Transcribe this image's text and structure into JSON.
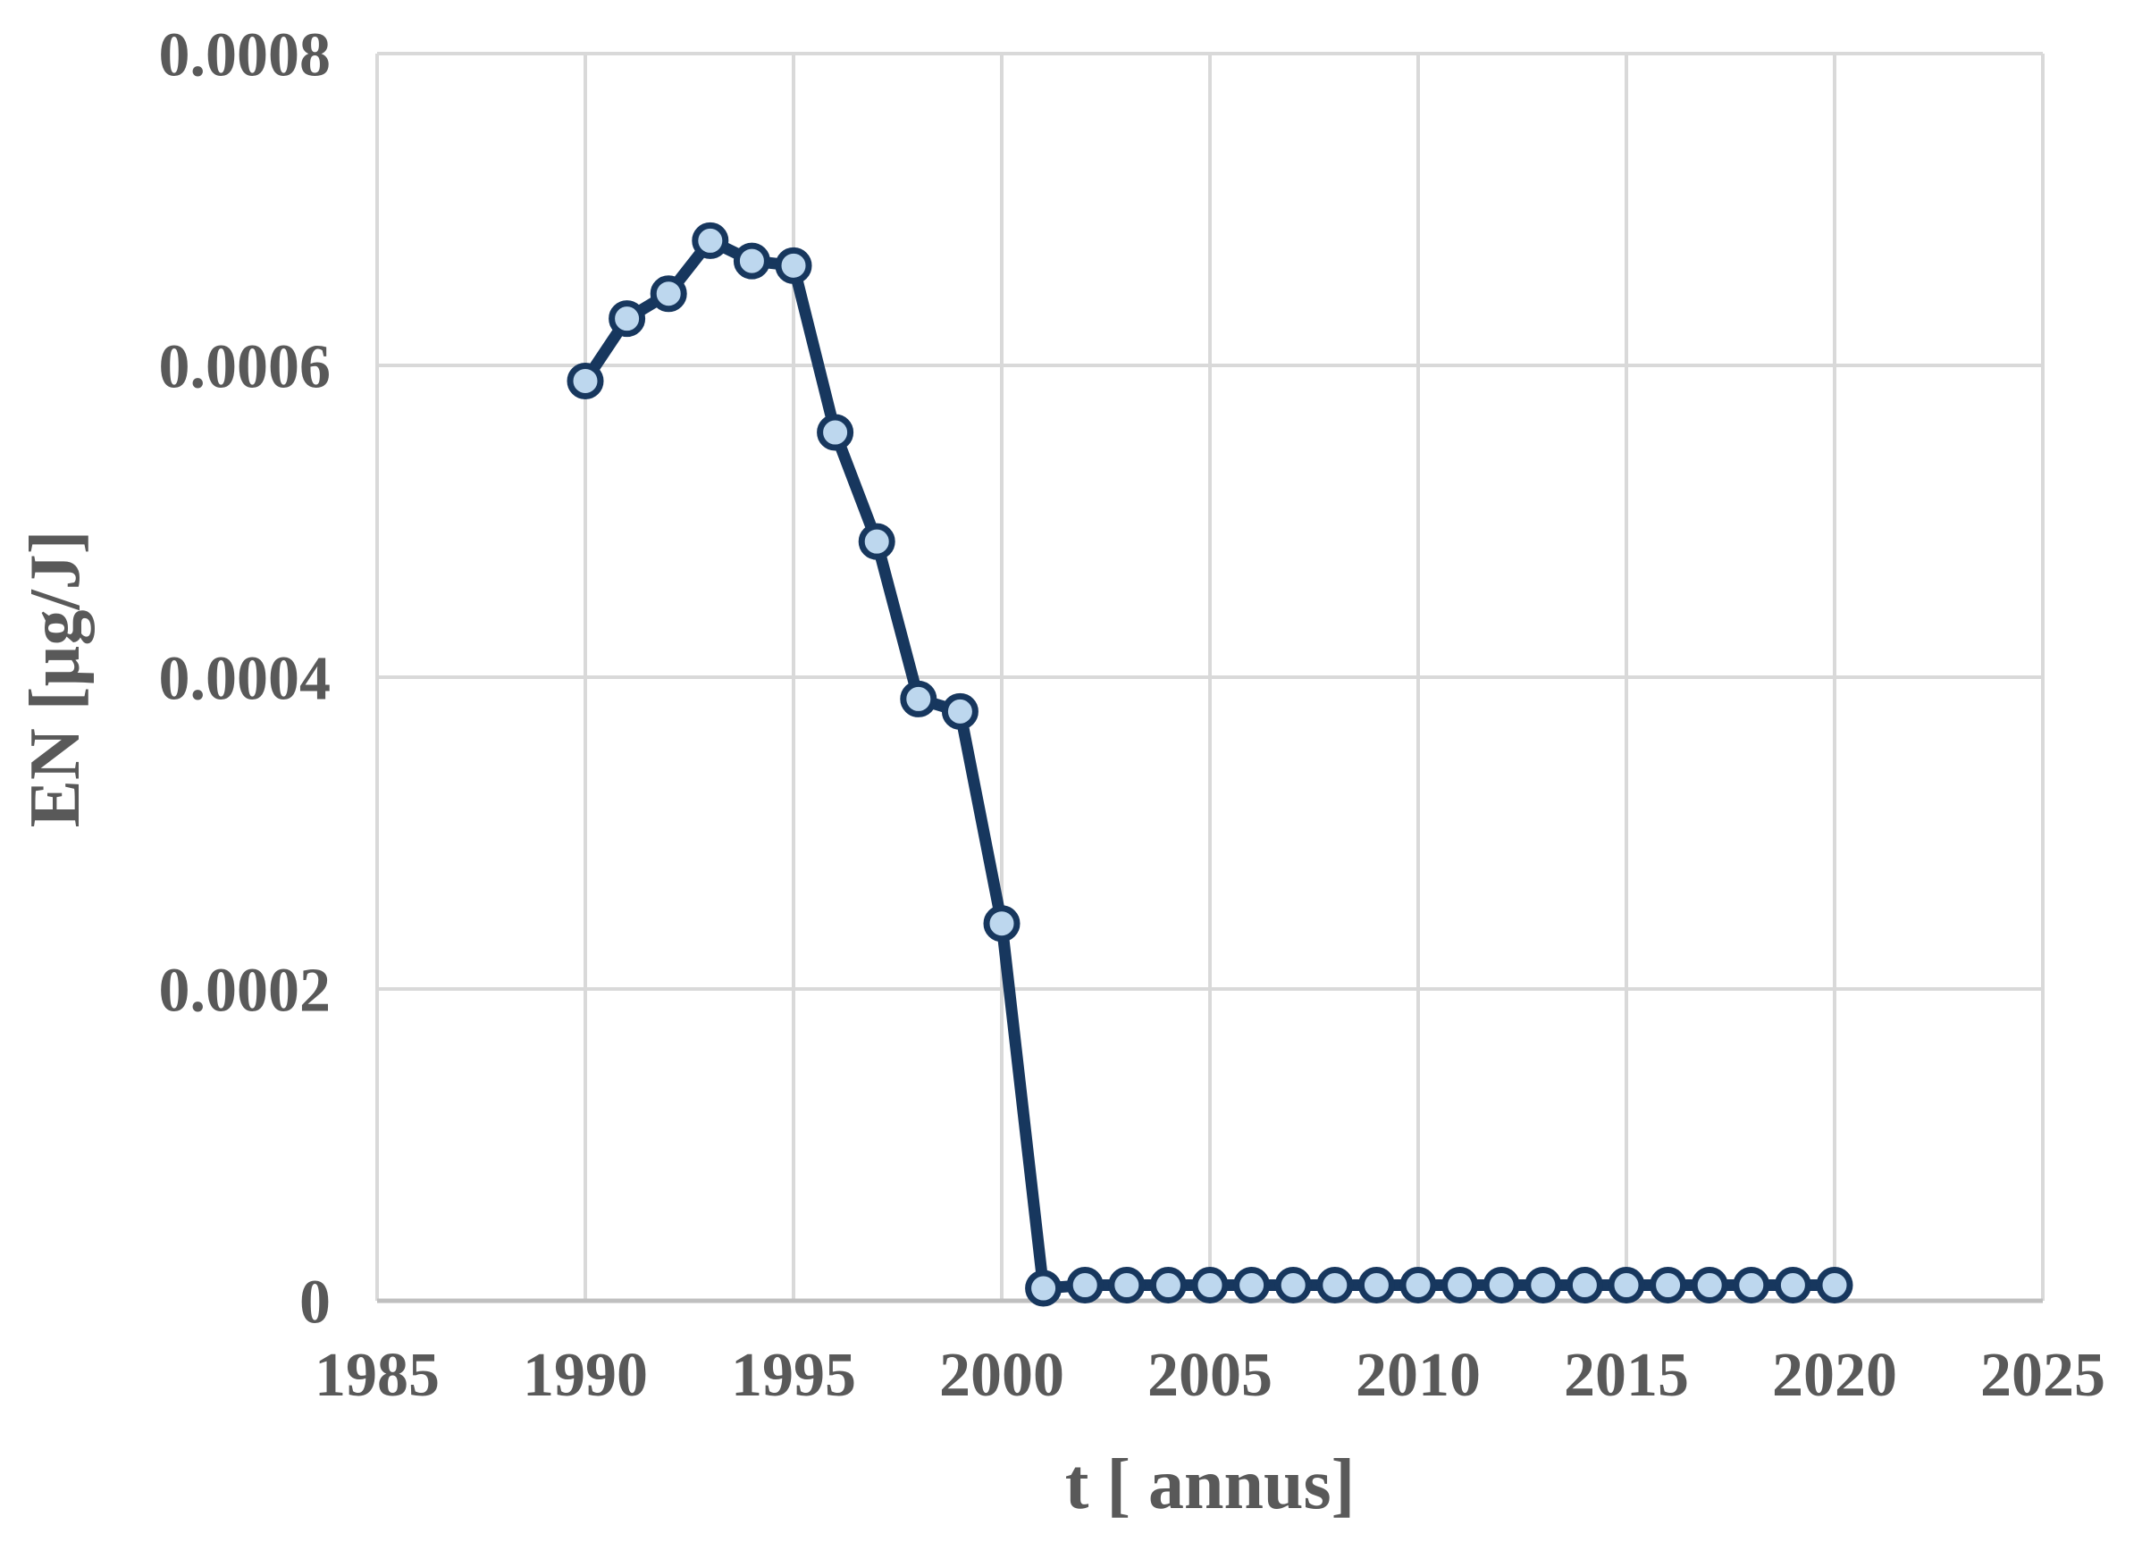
{
  "chart_data": {
    "type": "line",
    "title": "",
    "xlabel": "t [ annus]",
    "ylabel": "EN [µg/J]",
    "x": [
      1990,
      1991,
      1992,
      1993,
      1994,
      1995,
      1996,
      1997,
      1998,
      1999,
      2000,
      2001,
      2002,
      2003,
      2004,
      2005,
      2006,
      2007,
      2008,
      2009,
      2010,
      2011,
      2012,
      2013,
      2014,
      2015,
      2016,
      2017,
      2018,
      2019,
      2020
    ],
    "y": [
      0.00059,
      0.00063,
      0.000646,
      0.00068,
      0.000667,
      0.000664,
      0.000557,
      0.000487,
      0.000386,
      0.000378,
      0.000242,
      8e-06,
      1e-05,
      1e-05,
      1e-05,
      1e-05,
      1e-05,
      1e-05,
      1e-05,
      1e-05,
      1e-05,
      1e-05,
      1e-05,
      1e-05,
      1e-05,
      1e-05,
      1e-05,
      1e-05,
      1e-05,
      1e-05,
      1e-05
    ],
    "xlim": [
      1985,
      2025
    ],
    "ylim": [
      0,
      0.0008
    ],
    "xticks": [
      1985,
      1990,
      1995,
      2000,
      2005,
      2010,
      2015,
      2020,
      2025
    ],
    "xtick_labels": [
      "1985",
      "1990",
      "1995",
      "2000",
      "2005",
      "2010",
      "2015",
      "2020",
      "2025"
    ],
    "yticks": [
      0,
      0.0002,
      0.0004,
      0.0006,
      0.0008
    ],
    "ytick_labels": [
      "0",
      "0.0002",
      "0.0004",
      "0.0006",
      "0.0008"
    ],
    "grid": true,
    "legend": "none",
    "colors": {
      "line": "#17375E",
      "marker_fill": "#BDD7EE",
      "marker_stroke": "#17375E",
      "gridline": "#D9D9D9",
      "axis_line": "#BFBFBF",
      "text": "#595959",
      "background": "#FFFFFF"
    }
  }
}
